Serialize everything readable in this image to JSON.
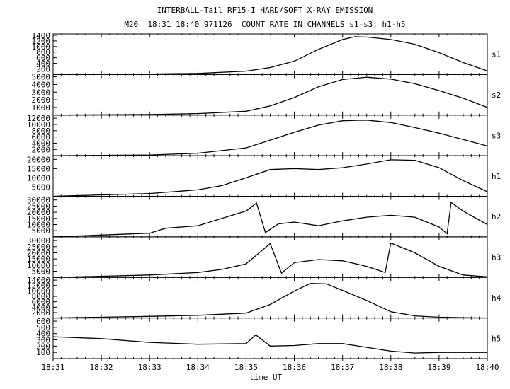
{
  "chart_data": {
    "type": "line",
    "title": "INTERBALL-Tail RF15-I HARD/SOFT X-RAY EMISSION",
    "subtitle": "M20  18:31 18:40 971126  COUNT RATE IN CHANNELS s1-s3, h1-h5",
    "xlabel": "time UT",
    "x_ticks": [
      "18:31",
      "18:32",
      "18:33",
      "18:34",
      "18:35",
      "18:36",
      "18:37",
      "18:38",
      "18:39",
      "18:40"
    ],
    "xlim": [
      "18:31",
      "18:40"
    ],
    "grid": false,
    "series": [
      {
        "name": "s1",
        "ylim": [
          0,
          1450
        ],
        "yticks": [
          200,
          400,
          600,
          800,
          1000,
          1200,
          1400
        ],
        "x": [
          "18:31",
          "18:33",
          "18:34",
          "18:35",
          "18:35:30",
          "18:36",
          "18:36:30",
          "18:37",
          "18:37:15",
          "18:37:30",
          "18:38",
          "18:38:30",
          "18:39",
          "18:39:30",
          "18:40"
        ],
        "values": [
          0,
          20,
          40,
          120,
          250,
          480,
          900,
          1250,
          1350,
          1340,
          1250,
          1080,
          780,
          430,
          130
        ]
      },
      {
        "name": "s2",
        "ylim": [
          0,
          5300
        ],
        "yticks": [
          1000,
          2000,
          3000,
          4000,
          5000
        ],
        "x": [
          "18:31",
          "18:33",
          "18:34",
          "18:35",
          "18:35:30",
          "18:36",
          "18:36:30",
          "18:37",
          "18:37:30",
          "18:38",
          "18:38:30",
          "18:39",
          "18:39:30",
          "18:40"
        ],
        "values": [
          0,
          80,
          200,
          500,
          1200,
          2300,
          3700,
          4650,
          4950,
          4700,
          4100,
          3200,
          2200,
          1000
        ]
      },
      {
        "name": "s3",
        "ylim": [
          0,
          13000
        ],
        "yticks": [
          2000,
          4000,
          6000,
          8000,
          10000,
          12000
        ],
        "x": [
          "18:31",
          "18:33",
          "18:34",
          "18:35",
          "18:35:30",
          "18:36",
          "18:36:30",
          "18:37",
          "18:37:30",
          "18:38",
          "18:38:30",
          "18:39",
          "18:39:30",
          "18:40"
        ],
        "values": [
          0,
          200,
          800,
          2500,
          5000,
          7500,
          9800,
          11200,
          11400,
          10600,
          9000,
          7200,
          5200,
          3100
        ]
      },
      {
        "name": "h1",
        "ylim": [
          0,
          22000
        ],
        "yticks": [
          5000,
          10000,
          15000,
          20000
        ],
        "x": [
          "18:31",
          "18:33",
          "18:34",
          "18:34:30",
          "18:35",
          "18:35:30",
          "18:36",
          "18:36:30",
          "18:37",
          "18:37:30",
          "18:38",
          "18:38:30",
          "18:39",
          "18:39:30",
          "18:40"
        ],
        "values": [
          0,
          1500,
          3500,
          5800,
          10000,
          14500,
          15000,
          14500,
          15500,
          17500,
          19800,
          19500,
          15500,
          8500,
          2500
        ]
      },
      {
        "name": "h2",
        "ylim": [
          0,
          33000
        ],
        "yticks": [
          5000,
          10000,
          15000,
          20000,
          25000,
          30000
        ],
        "x": [
          "18:31",
          "18:32",
          "18:33",
          "18:33:20",
          "18:34",
          "18:34:30",
          "18:35",
          "18:35:13",
          "18:35:24",
          "18:35:40",
          "18:36",
          "18:36:30",
          "18:37",
          "18:37:30",
          "18:38",
          "18:38:30",
          "18:39",
          "18:39:10",
          "18:39:15",
          "18:39:30",
          "18:40"
        ],
        "values": [
          0,
          1500,
          3000,
          7000,
          9000,
          15000,
          21000,
          27500,
          3500,
          10500,
          12000,
          9000,
          13000,
          16000,
          17500,
          16000,
          8000,
          2500,
          28000,
          21000,
          10000
        ]
      },
      {
        "name": "h3",
        "ylim": [
          0,
          33000
        ],
        "yticks": [
          5000,
          10000,
          15000,
          20000,
          25000,
          30000
        ],
        "x": [
          "18:31",
          "18:33",
          "18:34",
          "18:34:30",
          "18:35",
          "18:35:30",
          "18:35:44",
          "18:36",
          "18:36:30",
          "18:37",
          "18:37:30",
          "18:37:53",
          "18:38",
          "18:38:30",
          "18:39",
          "18:39:30",
          "18:40"
        ],
        "values": [
          0,
          2000,
          4000,
          6500,
          11000,
          27500,
          3500,
          12000,
          14500,
          13500,
          9000,
          4000,
          28000,
          20000,
          9000,
          2000,
          500
        ]
      },
      {
        "name": "h4",
        "ylim": [
          0,
          15000
        ],
        "yticks": [
          2000,
          4000,
          6000,
          8000,
          10000,
          12000,
          14000
        ],
        "x": [
          "18:31",
          "18:33",
          "18:34",
          "18:35",
          "18:35:30",
          "18:36",
          "18:36:20",
          "18:36:40",
          "18:37",
          "18:37:30",
          "18:38",
          "18:38:30",
          "18:39",
          "18:39:30",
          "18:40"
        ],
        "values": [
          0,
          600,
          1000,
          1800,
          5000,
          10000,
          12800,
          12600,
          10200,
          6500,
          2300,
          800,
          300,
          100,
          0
        ]
      },
      {
        "name": "h5",
        "ylim": [
          0,
          650
        ],
        "yticks": [
          100,
          200,
          300,
          400,
          500,
          600
        ],
        "x": [
          "18:31",
          "18:32",
          "18:33",
          "18:34",
          "18:35",
          "18:35:12",
          "18:35:30",
          "18:36",
          "18:36:30",
          "18:37",
          "18:37:30",
          "18:38",
          "18:38:30",
          "18:39",
          "18:39:30",
          "18:40"
        ],
        "values": [
          350,
          320,
          260,
          230,
          240,
          380,
          200,
          210,
          240,
          240,
          180,
          120,
          90,
          100,
          100,
          100
        ]
      }
    ]
  }
}
